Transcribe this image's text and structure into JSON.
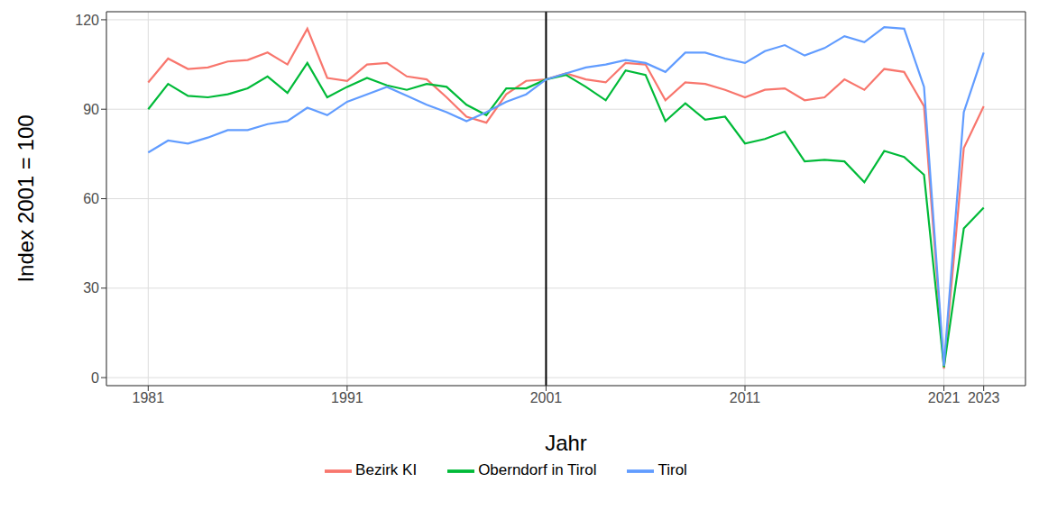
{
  "chart_data": {
    "type": "line",
    "x_label": "Jahr",
    "y_label": "Index 2001 = 100",
    "x": [
      1981,
      1982,
      1983,
      1984,
      1985,
      1986,
      1987,
      1988,
      1989,
      1990,
      1991,
      1992,
      1993,
      1994,
      1995,
      1996,
      1997,
      1998,
      1999,
      2000,
      2001,
      2002,
      2003,
      2004,
      2005,
      2006,
      2007,
      2008,
      2009,
      2010,
      2011,
      2012,
      2013,
      2014,
      2015,
      2016,
      2017,
      2018,
      2019,
      2020,
      2021,
      2022,
      2023
    ],
    "series": [
      {
        "name": "Bezirk KI",
        "color": "#F8766D",
        "values": [
          99,
          107,
          103.5,
          104,
          106,
          106.5,
          109,
          105,
          117,
          100.5,
          99.5,
          105,
          105.5,
          101,
          100,
          94,
          87.5,
          85.5,
          95,
          99.5,
          100,
          102,
          100,
          99,
          105.5,
          105,
          93,
          99,
          98.5,
          96.5,
          94,
          96.5,
          97,
          93,
          94,
          100,
          96.5,
          103.5,
          102.5,
          91,
          3,
          77,
          91
        ]
      },
      {
        "name": "Oberndorf in Tirol",
        "color": "#00BA38",
        "values": [
          90,
          98.5,
          94.5,
          94,
          95,
          97,
          101,
          95.5,
          105.5,
          94,
          97.5,
          100.5,
          98,
          96.5,
          98.5,
          97.5,
          91.5,
          88,
          97,
          97,
          100,
          101.5,
          97.5,
          93,
          103,
          101.5,
          86,
          92,
          86.5,
          87.5,
          78.5,
          80,
          82.5,
          72.5,
          73,
          72.5,
          65.5,
          76,
          74,
          68,
          3.5,
          50,
          57
        ]
      },
      {
        "name": "Tirol",
        "color": "#619CFF",
        "values": [
          75.5,
          79.5,
          78.5,
          80.5,
          83,
          83,
          85,
          86,
          90.5,
          88,
          92.5,
          95,
          97.5,
          94.5,
          91.5,
          89,
          86,
          89,
          92.5,
          95,
          100,
          102,
          104,
          105,
          106.5,
          105.5,
          102.5,
          109,
          109,
          107,
          105.5,
          109.5,
          111.5,
          108,
          110.5,
          114.5,
          112.5,
          117.5,
          117,
          97.5,
          4,
          89,
          109
        ]
      }
    ],
    "xlim": [
      1978.9,
      2025.1
    ],
    "xticks": [
      1981,
      1991,
      2001,
      2011,
      2021,
      2023
    ],
    "ylim": [
      -2.7,
      122.7
    ],
    "yticks": [
      0,
      30,
      60,
      90,
      120
    ],
    "vline": 2001,
    "grid": true,
    "legend": "bottom"
  }
}
